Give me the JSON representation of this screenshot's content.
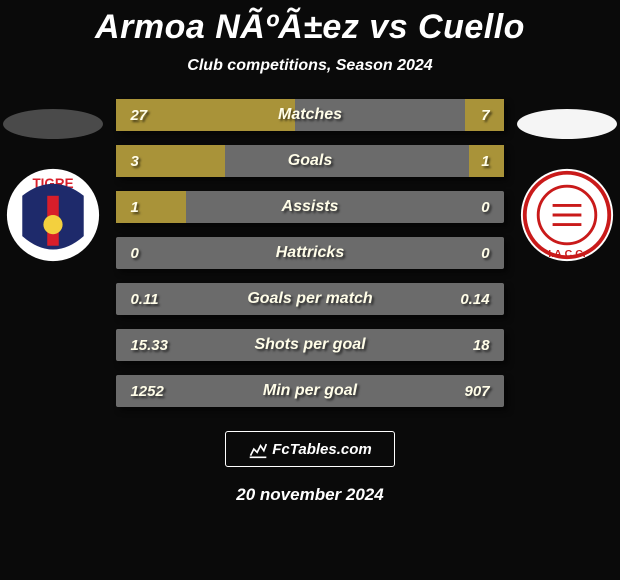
{
  "title": "Armoa NÃºÃ±ez vs Cuello",
  "subtitle": "Club competitions, Season 2024",
  "date": "20 november 2024",
  "footer_logo_text": "FcTables.com",
  "left_oval_color": "#4a4a4a",
  "right_oval_color": "#f5f5f5",
  "bar_fill_color": "#a99339",
  "bar_base_color": "#6b6b6b",
  "team_left": {
    "name": "Tigre",
    "badge": {
      "outer_bg": "#ffffff",
      "inner_bg": "#1e2a6b",
      "stripe_color": "#d81e2a",
      "text": "TIGRE",
      "text_color": "#d81e2a"
    }
  },
  "team_right": {
    "name": "Instituto ACC",
    "badge": {
      "outer_bg": "#ffffff",
      "ring_color": "#c91a1a",
      "inner_bg": "#ffffff",
      "text": "I.A.C.C.",
      "text_color": "#c91a1a"
    }
  },
  "stats": [
    {
      "label": "Matches",
      "left_val": "27",
      "right_val": "7",
      "left_pct": 46,
      "right_pct": 10
    },
    {
      "label": "Goals",
      "left_val": "3",
      "right_val": "1",
      "left_pct": 28,
      "right_pct": 9
    },
    {
      "label": "Assists",
      "left_val": "1",
      "right_val": "0",
      "left_pct": 18,
      "right_pct": 0
    },
    {
      "label": "Hattricks",
      "left_val": "0",
      "right_val": "0",
      "left_pct": 0,
      "right_pct": 0
    },
    {
      "label": "Goals per match",
      "left_val": "0.11",
      "right_val": "0.14",
      "left_pct": 0,
      "right_pct": 0
    },
    {
      "label": "Shots per goal",
      "left_val": "15.33",
      "right_val": "18",
      "left_pct": 0,
      "right_pct": 0
    },
    {
      "label": "Min per goal",
      "left_val": "1252",
      "right_val": "907",
      "left_pct": 0,
      "right_pct": 0
    }
  ]
}
